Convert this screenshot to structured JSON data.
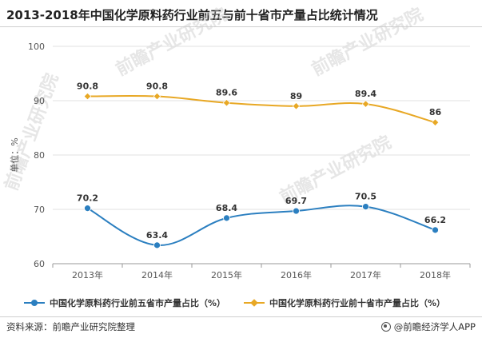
{
  "title": "2013-2018年中国化学原料药行业前五与前十省市产量占比统计情况",
  "source_text": "资料来源：前瞻产业研究院整理",
  "brand_text": "@前瞻经济学人APP",
  "watermark_text": "前瞻产业研究院",
  "colors": {
    "series1": "#2b7fc0",
    "series2": "#e8a825",
    "grid": "#e0e0e0",
    "axis": "#9a9a9a"
  },
  "chart_data": {
    "type": "line",
    "title": "2013-2018年中国化学原料药行业前五与前十省市产量占比统计情况",
    "xlabel": "",
    "ylabel": "单位：%",
    "categories": [
      "2013年",
      "2014年",
      "2015年",
      "2016年",
      "2017年",
      "2018年"
    ],
    "ylim": [
      60,
      100
    ],
    "yticks": [
      60,
      70,
      80,
      90,
      100
    ],
    "grid": true,
    "legend": "bottom",
    "series": [
      {
        "name": "中国化学原料药行业前五省市产量占比（%）",
        "values": [
          70.2,
          63.4,
          68.4,
          69.7,
          70.5,
          66.2
        ],
        "labels": [
          "70.2",
          "63.4",
          "68.4",
          "69.7",
          "70.5",
          "66.2"
        ],
        "marker": "circle"
      },
      {
        "name": "中国化学原料药行业前十省市产量占比（%）",
        "values": [
          90.8,
          90.8,
          89.6,
          89.0,
          89.4,
          86.0
        ],
        "labels": [
          "90.8",
          "90.8",
          "89.6",
          "89",
          "89.4",
          "86"
        ],
        "marker": "diamond"
      }
    ]
  }
}
